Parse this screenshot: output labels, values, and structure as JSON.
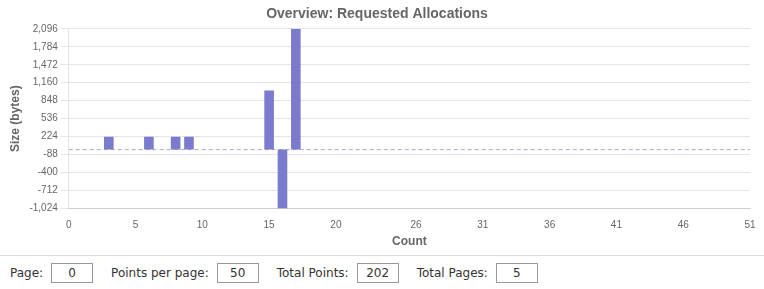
{
  "chart_data": {
    "type": "bar",
    "title": "Overview: Requested Allocations",
    "xlabel": "Count",
    "ylabel": "Size (bytes)",
    "x": [
      3,
      6,
      8,
      9,
      15,
      17,
      16
    ],
    "values": [
      224,
      224,
      224,
      224,
      1024,
      2096,
      -1024
    ],
    "color": "#7b7bcd",
    "xlim": [
      0,
      51
    ],
    "ylim": [
      -1024,
      2096
    ],
    "xticks": [
      0,
      5,
      10,
      15,
      20,
      26,
      31,
      36,
      41,
      46,
      51
    ],
    "yticks": [
      {
        "value": 2096,
        "label": "2,096"
      },
      {
        "value": 1784,
        "label": "1,784"
      },
      {
        "value": 1472,
        "label": "1,472"
      },
      {
        "value": 1160,
        "label": "1,160"
      },
      848,
      536,
      224,
      -88,
      -400,
      -712,
      {
        "value": -1024,
        "label": "-1,024"
      }
    ],
    "grid": "y",
    "hline": {
      "y": 0,
      "color": "#aaaadd",
      "line_style": "dashed"
    },
    "annotations": [
      {
        "text": "Page:",
        "value": 0
      },
      {
        "text": "Points per page:",
        "value": 50
      },
      {
        "text": "Total Points:",
        "value": 202
      },
      {
        "text": "Total Pages:",
        "value": 5
      }
    ]
  }
}
